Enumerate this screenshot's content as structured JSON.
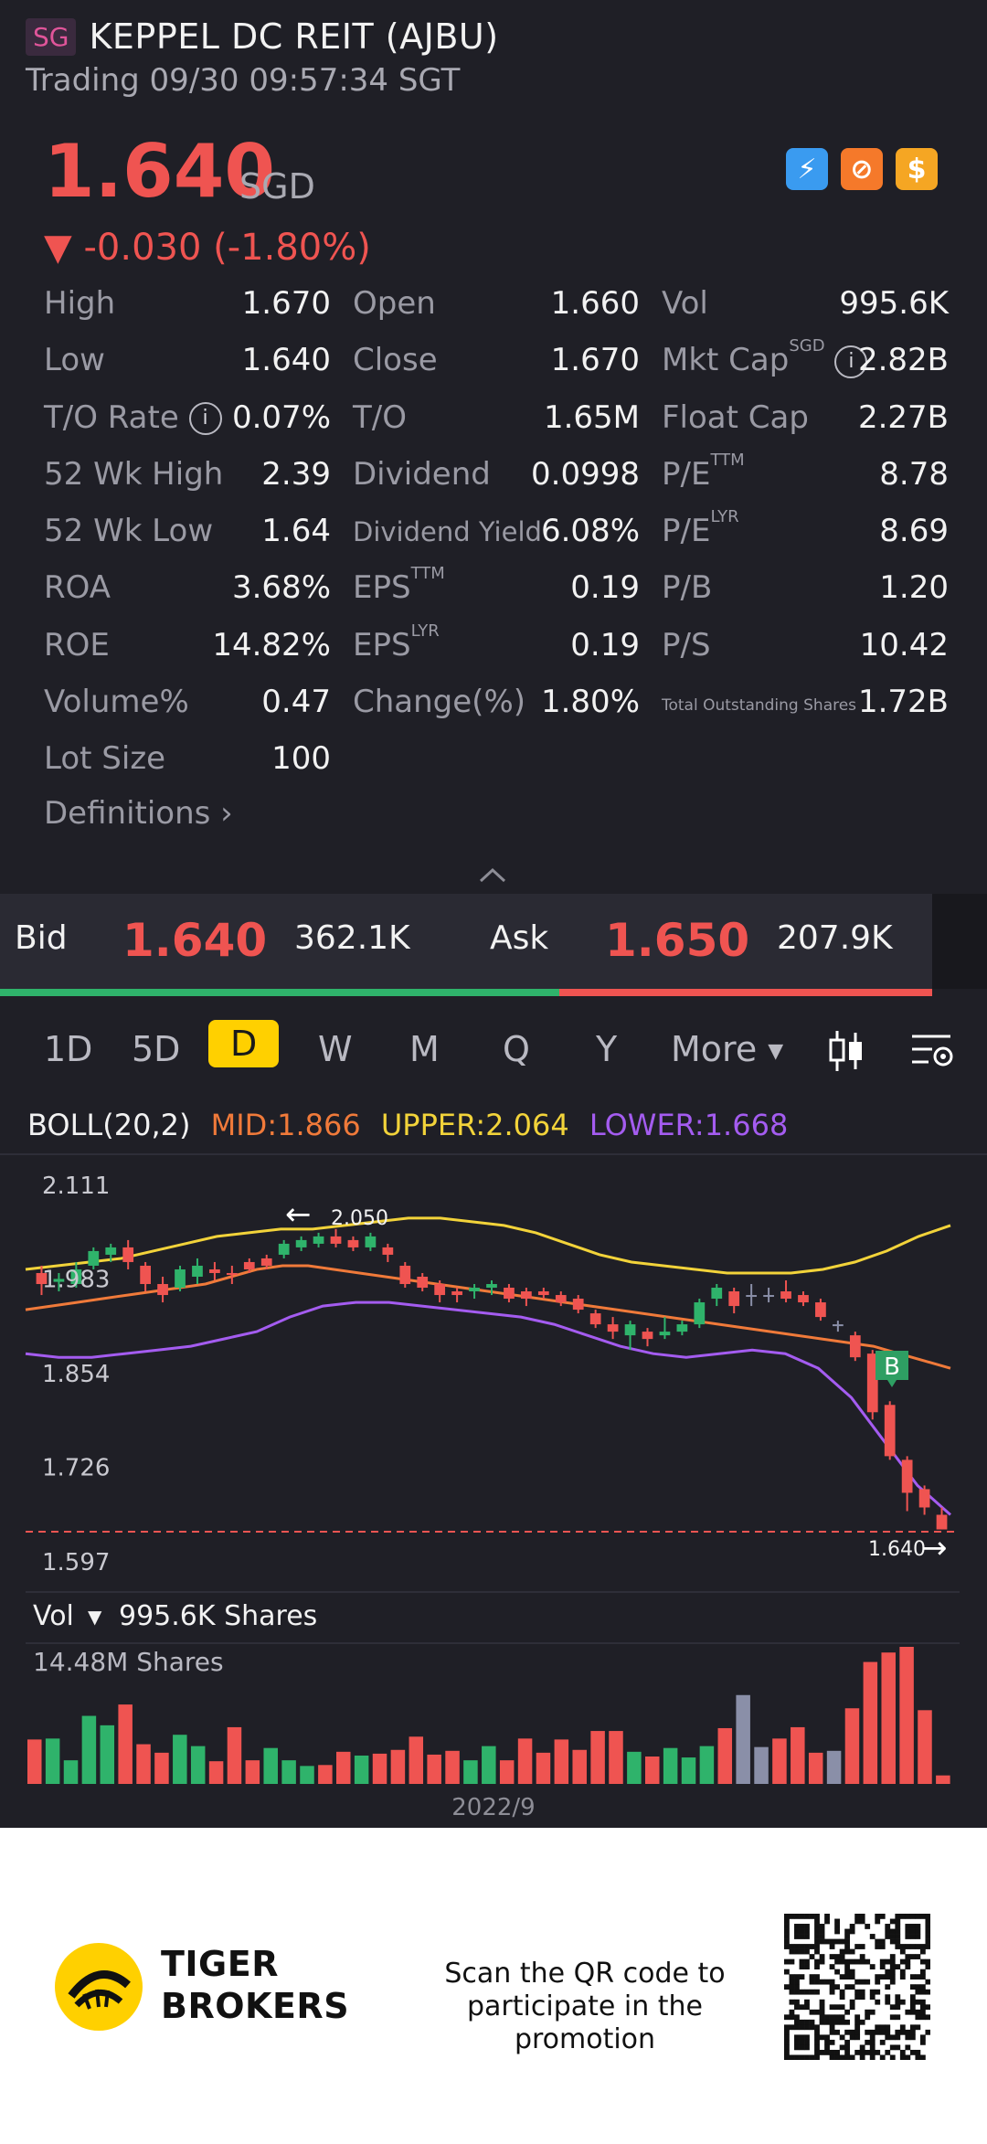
{
  "header": {
    "market_badge": "SG",
    "title": "KEPPEL DC REIT (AJBU)",
    "status": "Trading 09/30 09:57:34 SGT"
  },
  "quote": {
    "price": "1.640",
    "currency": "SGD",
    "change": "▼ -0.030 (-1.80%)"
  },
  "badges": [
    {
      "name": "flash-badge-icon",
      "glyph": "⚡",
      "color": "#3a9bf0"
    },
    {
      "name": "trade-badge-icon",
      "glyph": "⊘",
      "color": "#f5792a"
    },
    {
      "name": "dollar-badge-icon",
      "glyph": "$",
      "color": "#f5a623"
    }
  ],
  "stats": {
    "r1": {
      "l1": "High",
      "v1": "1.670",
      "l2": "Open",
      "v2": "1.660",
      "l3": "Vol",
      "v3": "995.6K"
    },
    "r2": {
      "l1": "Low",
      "v1": "1.640",
      "l2": "Close",
      "v2": "1.670",
      "l3": "Mkt Cap",
      "l3sup": "SGD",
      "v3": "2.82B"
    },
    "r3": {
      "l1": "T/O Rate",
      "v1": "0.07%",
      "l2": "T/O",
      "v2": "1.65M",
      "l3": "Float Cap",
      "v3": "2.27B"
    },
    "r4": {
      "l1": "52 Wk High",
      "v1": "2.39",
      "l2": "Dividend",
      "v2": "0.0998",
      "l3": "P/E",
      "l3sup": "TTM",
      "v3": "8.78"
    },
    "r5": {
      "l1": "52 Wk Low",
      "v1": "1.64",
      "l2": "Dividend Yield",
      "v2": "6.08%",
      "l3": "P/E",
      "l3sup": "LYR",
      "v3": "8.69"
    },
    "r6": {
      "l1": "ROA",
      "v1": "3.68%",
      "l2": "EPS",
      "l2sup": "TTM",
      "v2": "0.19",
      "l3": "P/B",
      "v3": "1.20"
    },
    "r7": {
      "l1": "ROE",
      "v1": "14.82%",
      "l2": "EPS",
      "l2sup": "LYR",
      "v2": "0.19",
      "l3": "P/S",
      "v3": "10.42"
    },
    "r8": {
      "l1": "Volume%",
      "v1": "0.47",
      "l2": "Change(%)",
      "v2": "1.80%",
      "l3": "Total Outstanding Shares",
      "v3": "1.72B"
    },
    "r9": {
      "l1": "Lot Size",
      "v1": "100"
    },
    "info_glyph": "i"
  },
  "definitions": "Definitions",
  "orderbook": {
    "bid_label": "Bid",
    "bid_price": "1.640",
    "bid_size": "362.1K",
    "ask_label": "Ask",
    "ask_price": "1.650",
    "ask_size": "207.9K",
    "bid_ratio": 0.6
  },
  "tabs": [
    "1D",
    "5D",
    "D",
    "W",
    "M",
    "Q",
    "Y",
    "More"
  ],
  "selected_tab": "D",
  "boll": {
    "label": "BOLL(20,2)",
    "mid": "MID:1.866",
    "upper": "UPPER:2.064",
    "lower": "LOWER:1.668"
  },
  "chart_data": {
    "type": "candlestick",
    "y_ticks": [
      "2.111",
      "1.983",
      "1.854",
      "1.726",
      "1.597"
    ],
    "ylim": [
      1.597,
      2.111
    ],
    "max_marker": "2.050",
    "last_price": "1.640",
    "buy_marker": "B",
    "volume_label": "Vol",
    "volume_value": "995.6K Shares",
    "volume_max": "14.48M Shares",
    "x_label": "2022/9",
    "candles": [
      {
        "o": 1.99,
        "c": 1.975,
        "h": 2.0,
        "l": 1.96,
        "dir": "down"
      },
      {
        "o": 1.978,
        "c": 1.982,
        "h": 1.99,
        "l": 1.965,
        "dir": "up"
      },
      {
        "o": 1.975,
        "c": 1.995,
        "h": 2.005,
        "l": 1.97,
        "dir": "up"
      },
      {
        "o": 2.0,
        "c": 2.02,
        "h": 2.025,
        "l": 1.995,
        "dir": "up"
      },
      {
        "o": 2.015,
        "c": 2.025,
        "h": 2.03,
        "l": 2.005,
        "dir": "up"
      },
      {
        "o": 2.025,
        "c": 2.005,
        "h": 2.035,
        "l": 1.995,
        "dir": "down"
      },
      {
        "o": 2.0,
        "c": 1.975,
        "h": 2.005,
        "l": 1.965,
        "dir": "down"
      },
      {
        "o": 1.975,
        "c": 1.96,
        "h": 1.985,
        "l": 1.95,
        "dir": "down"
      },
      {
        "o": 1.97,
        "c": 1.995,
        "h": 2.0,
        "l": 1.965,
        "dir": "up"
      },
      {
        "o": 1.985,
        "c": 2.0,
        "h": 2.01,
        "l": 1.975,
        "dir": "up"
      },
      {
        "o": 1.995,
        "c": 1.99,
        "h": 2.005,
        "l": 1.98,
        "dir": "down"
      },
      {
        "o": 1.99,
        "c": 1.99,
        "h": 2.0,
        "l": 1.975,
        "dir": "down"
      },
      {
        "o": 2.005,
        "c": 1.995,
        "h": 2.01,
        "l": 1.99,
        "dir": "down"
      },
      {
        "o": 2.01,
        "c": 2.0,
        "h": 2.015,
        "l": 1.995,
        "dir": "down"
      },
      {
        "o": 2.015,
        "c": 2.03,
        "h": 2.035,
        "l": 2.01,
        "dir": "up"
      },
      {
        "o": 2.025,
        "c": 2.035,
        "h": 2.04,
        "l": 2.02,
        "dir": "up"
      },
      {
        "o": 2.03,
        "c": 2.04,
        "h": 2.045,
        "l": 2.025,
        "dir": "up"
      },
      {
        "o": 2.04,
        "c": 2.03,
        "h": 2.05,
        "l": 2.025,
        "dir": "down"
      },
      {
        "o": 2.035,
        "c": 2.025,
        "h": 2.04,
        "l": 2.02,
        "dir": "down"
      },
      {
        "o": 2.025,
        "c": 2.04,
        "h": 2.045,
        "l": 2.02,
        "dir": "up"
      },
      {
        "o": 2.025,
        "c": 2.015,
        "h": 2.03,
        "l": 2.005,
        "dir": "down"
      },
      {
        "o": 2.0,
        "c": 1.975,
        "h": 2.005,
        "l": 1.97,
        "dir": "down"
      },
      {
        "o": 1.985,
        "c": 1.97,
        "h": 1.99,
        "l": 1.965,
        "dir": "down"
      },
      {
        "o": 1.975,
        "c": 1.96,
        "h": 1.98,
        "l": 1.95,
        "dir": "down"
      },
      {
        "o": 1.965,
        "c": 1.96,
        "h": 1.97,
        "l": 1.95,
        "dir": "down"
      },
      {
        "o": 1.965,
        "c": 1.97,
        "h": 1.975,
        "l": 1.955,
        "dir": "up"
      },
      {
        "o": 1.97,
        "c": 1.975,
        "h": 1.98,
        "l": 1.96,
        "dir": "up"
      },
      {
        "o": 1.97,
        "c": 1.955,
        "h": 1.975,
        "l": 1.95,
        "dir": "down"
      },
      {
        "o": 1.965,
        "c": 1.955,
        "h": 1.97,
        "l": 1.945,
        "dir": "down"
      },
      {
        "o": 1.965,
        "c": 1.96,
        "h": 1.97,
        "l": 1.955,
        "dir": "down"
      },
      {
        "o": 1.96,
        "c": 1.95,
        "h": 1.965,
        "l": 1.945,
        "dir": "down"
      },
      {
        "o": 1.955,
        "c": 1.94,
        "h": 1.96,
        "l": 1.935,
        "dir": "down"
      },
      {
        "o": 1.935,
        "c": 1.92,
        "h": 1.94,
        "l": 1.915,
        "dir": "down"
      },
      {
        "o": 1.92,
        "c": 1.91,
        "h": 1.93,
        "l": 1.9,
        "dir": "down"
      },
      {
        "o": 1.905,
        "c": 1.92,
        "h": 1.925,
        "l": 1.885,
        "dir": "up"
      },
      {
        "o": 1.91,
        "c": 1.9,
        "h": 1.915,
        "l": 1.89,
        "dir": "down"
      },
      {
        "o": 1.905,
        "c": 1.91,
        "h": 1.93,
        "l": 1.9,
        "dir": "up"
      },
      {
        "o": 1.91,
        "c": 1.92,
        "h": 1.925,
        "l": 1.905,
        "dir": "up"
      },
      {
        "o": 1.92,
        "c": 1.95,
        "h": 1.955,
        "l": 1.915,
        "dir": "up"
      },
      {
        "o": 1.955,
        "c": 1.97,
        "h": 1.975,
        "l": 1.945,
        "dir": "up"
      },
      {
        "o": 1.965,
        "c": 1.945,
        "h": 1.97,
        "l": 1.935,
        "dir": "down"
      },
      {
        "o": 1.96,
        "c": 1.96,
        "h": 1.975,
        "l": 1.945,
        "dir": "flat"
      },
      {
        "o": 1.96,
        "c": 1.96,
        "h": 1.97,
        "l": 1.95,
        "dir": "flat"
      },
      {
        "o": 1.965,
        "c": 1.955,
        "h": 1.98,
        "l": 1.95,
        "dir": "down"
      },
      {
        "o": 1.96,
        "c": 1.95,
        "h": 1.965,
        "l": 1.945,
        "dir": "down"
      },
      {
        "o": 1.95,
        "c": 1.93,
        "h": 1.955,
        "l": 1.925,
        "dir": "down"
      },
      {
        "o": 1.92,
        "c": 1.92,
        "h": 1.925,
        "l": 1.91,
        "dir": "flat"
      },
      {
        "o": 1.905,
        "c": 1.875,
        "h": 1.91,
        "l": 1.87,
        "dir": "down"
      },
      {
        "o": 1.88,
        "c": 1.8,
        "h": 1.885,
        "l": 1.79,
        "dir": "down"
      },
      {
        "o": 1.81,
        "c": 1.74,
        "h": 1.815,
        "l": 1.735,
        "dir": "down"
      },
      {
        "o": 1.735,
        "c": 1.69,
        "h": 1.74,
        "l": 1.665,
        "dir": "down"
      },
      {
        "o": 1.695,
        "c": 1.67,
        "h": 1.7,
        "l": 1.66,
        "dir": "down"
      },
      {
        "o": 1.66,
        "c": 1.64,
        "h": 1.67,
        "l": 1.64,
        "dir": "down"
      }
    ],
    "mid_band": [
      1.94,
      1.945,
      1.95,
      1.955,
      1.96,
      1.965,
      1.97,
      1.975,
      1.985,
      1.995,
      2.0,
      2.0,
      1.995,
      1.99,
      1.985,
      1.98,
      1.975,
      1.97,
      1.965,
      1.96,
      1.955,
      1.95,
      1.945,
      1.94,
      1.935,
      1.93,
      1.925,
      1.92,
      1.915,
      1.91,
      1.905,
      1.9,
      1.895,
      1.89,
      1.88,
      1.87,
      1.86
    ],
    "upper_band": [
      1.995,
      2.0,
      2.005,
      2.01,
      2.02,
      2.03,
      2.04,
      2.045,
      2.05,
      2.05,
      2.055,
      2.06,
      2.065,
      2.065,
      2.06,
      2.055,
      2.045,
      2.03,
      2.015,
      2.005,
      2.0,
      1.995,
      1.99,
      1.99,
      1.99,
      1.995,
      2.005,
      2.02,
      2.04,
      2.055
    ],
    "lower_band": [
      1.88,
      1.875,
      1.875,
      1.88,
      1.885,
      1.89,
      1.9,
      1.91,
      1.93,
      1.945,
      1.95,
      1.95,
      1.945,
      1.94,
      1.935,
      1.93,
      1.92,
      1.905,
      1.89,
      1.88,
      1.875,
      1.88,
      1.885,
      1.88,
      1.86,
      1.82,
      1.76,
      1.7,
      1.66
    ],
    "volumes": [
      4.7,
      4.8,
      2.5,
      7.2,
      6.2,
      8.4,
      4.2,
      3.3,
      5.2,
      4.0,
      2.4,
      6.0,
      2.5,
      3.8,
      2.5,
      1.9,
      2.0,
      3.4,
      3.0,
      3.2,
      3.6,
      5.0,
      3.1,
      3.5,
      2.5,
      4.0,
      2.5,
      4.8,
      3.3,
      4.7,
      3.6,
      5.6,
      5.6,
      3.4,
      2.9,
      3.8,
      2.8,
      4.0,
      5.9,
      9.4,
      3.9,
      4.8,
      6.0,
      3.3,
      3.5,
      8.0,
      12.9,
      13.9,
      14.5,
      7.8,
      0.9
    ]
  },
  "footer": {
    "brand_line1": "TIGER",
    "brand_line2": "BROKERS",
    "promo_line1": "Scan the QR code to",
    "promo_line2": "participate in the promotion"
  },
  "colors": {
    "up": "#2fb36b",
    "down": "#ef5451",
    "flat": "#8a8fa8",
    "mid": "#f07a3a",
    "upper": "#f2d33a",
    "lower": "#a45cf0",
    "accent": "#ffd000"
  }
}
